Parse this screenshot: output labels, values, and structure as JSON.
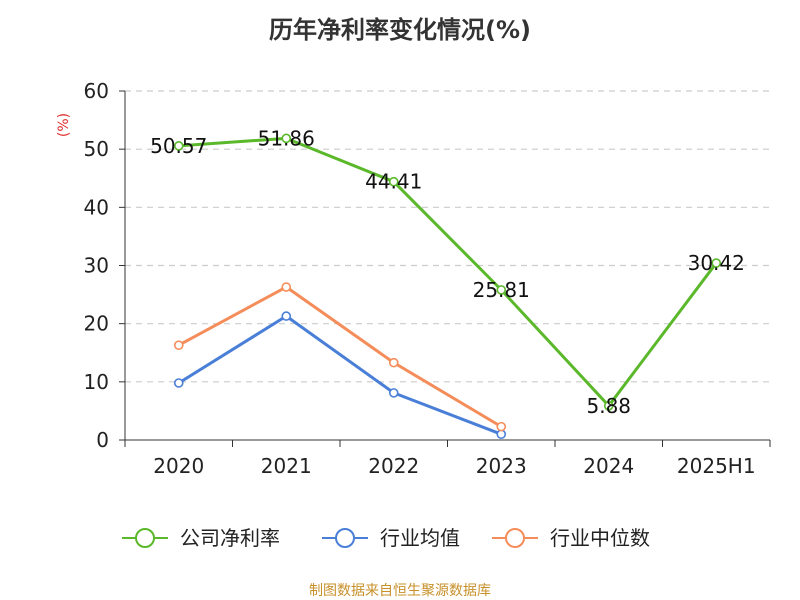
{
  "chart_data": {
    "type": "line",
    "title": "历年净利率变化情况(%)",
    "ylabel": "(%)",
    "categories": [
      "2020",
      "2021",
      "2022",
      "2023",
      "2024",
      "2025H1"
    ],
    "y_ticks": [
      "0",
      "10",
      "20",
      "30",
      "40",
      "50",
      "60"
    ],
    "ylim": [
      0,
      60
    ],
    "grid": true,
    "legend_position": "bottom",
    "series": [
      {
        "name": "公司净利率",
        "color": "#5ab82a",
        "values": [
          50.57,
          51.86,
          44.41,
          25.81,
          5.88,
          30.42
        ],
        "labels": [
          "50.57",
          "51.86",
          "44.41",
          "25.81",
          "5.88",
          "30.42"
        ]
      },
      {
        "name": "行业均值",
        "color": "#4a7fd8",
        "values": [
          9.8,
          21.3,
          8.1,
          1.0,
          null,
          null
        ]
      },
      {
        "name": "行业中位数",
        "color": "#f58d5a",
        "values": [
          16.3,
          26.3,
          13.3,
          2.3,
          null,
          null
        ]
      }
    ]
  },
  "source_text": "制图数据来自恒生聚源数据库"
}
